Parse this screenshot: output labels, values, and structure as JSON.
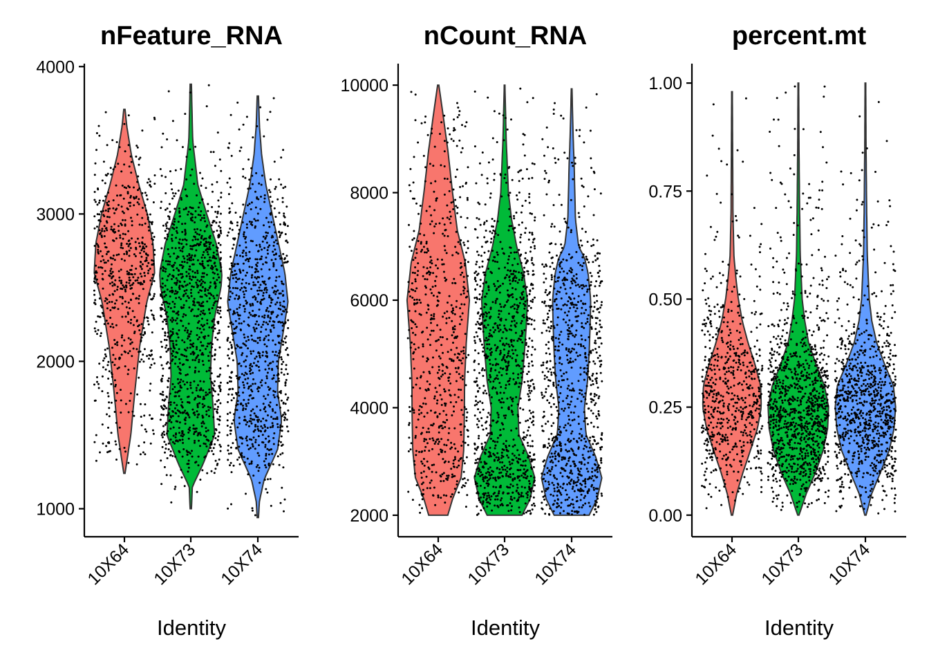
{
  "chart_data": [
    {
      "type": "violin",
      "title": "nFeature_RNA",
      "xlabel": "Identity",
      "ylabel": "",
      "categories": [
        "10X64",
        "10X73",
        "10X74"
      ],
      "colors": [
        "#F8766D",
        "#00BA38",
        "#619CFF"
      ],
      "yticks": [
        1000,
        2000,
        3000,
        4000
      ],
      "ytick_labels": [
        "1000",
        "2000",
        "3000",
        "4000"
      ],
      "ylim": [
        810,
        4020
      ],
      "groups": [
        {
          "name": "10X64",
          "min": 1240,
          "max": 3710,
          "density": [
            [
              1240,
              0.02
            ],
            [
              1500,
              0.2
            ],
            [
              1800,
              0.33
            ],
            [
              2100,
              0.48
            ],
            [
              2400,
              0.7
            ],
            [
              2600,
              0.95
            ],
            [
              2800,
              0.9
            ],
            [
              3000,
              0.72
            ],
            [
              3200,
              0.45
            ],
            [
              3400,
              0.22
            ],
            [
              3600,
              0.07
            ],
            [
              3710,
              0.02
            ]
          ]
        },
        {
          "name": "10X73",
          "min": 1000,
          "max": 3880,
          "density": [
            [
              1000,
              0.02
            ],
            [
              1150,
              0.05
            ],
            [
              1300,
              0.38
            ],
            [
              1500,
              0.75
            ],
            [
              1700,
              0.7
            ],
            [
              1900,
              0.62
            ],
            [
              2100,
              0.65
            ],
            [
              2300,
              0.75
            ],
            [
              2500,
              0.95
            ],
            [
              2600,
              0.98
            ],
            [
              2800,
              0.8
            ],
            [
              3000,
              0.5
            ],
            [
              3200,
              0.22
            ],
            [
              3500,
              0.06
            ],
            [
              3880,
              0.02
            ]
          ]
        },
        {
          "name": "10X74",
          "min": 940,
          "max": 3800,
          "density": [
            [
              940,
              0.02
            ],
            [
              1050,
              0.05
            ],
            [
              1200,
              0.2
            ],
            [
              1400,
              0.62
            ],
            [
              1600,
              0.75
            ],
            [
              1800,
              0.62
            ],
            [
              2000,
              0.65
            ],
            [
              2200,
              0.8
            ],
            [
              2400,
              0.95
            ],
            [
              2600,
              0.85
            ],
            [
              2800,
              0.65
            ],
            [
              3000,
              0.45
            ],
            [
              3200,
              0.25
            ],
            [
              3400,
              0.12
            ],
            [
              3600,
              0.05
            ],
            [
              3800,
              0.02
            ]
          ]
        }
      ]
    },
    {
      "type": "violin",
      "title": "nCount_RNA",
      "xlabel": "Identity",
      "ylabel": "",
      "categories": [
        "10X64",
        "10X73",
        "10X74"
      ],
      "colors": [
        "#F8766D",
        "#00BA38",
        "#619CFF"
      ],
      "yticks": [
        2000,
        4000,
        6000,
        8000,
        10000
      ],
      "ytick_labels": [
        "2000",
        "4000",
        "6000",
        "8000",
        "10000"
      ],
      "ylim": [
        1600,
        10400
      ],
      "groups": [
        {
          "name": "10X64",
          "min": 2000,
          "max": 10000,
          "density": [
            [
              2000,
              0.3
            ],
            [
              2300,
              0.45
            ],
            [
              2700,
              0.72
            ],
            [
              3200,
              0.8
            ],
            [
              3800,
              0.82
            ],
            [
              4500,
              0.83
            ],
            [
              5200,
              0.88
            ],
            [
              6000,
              0.98
            ],
            [
              6700,
              0.85
            ],
            [
              7300,
              0.6
            ],
            [
              8000,
              0.45
            ],
            [
              8800,
              0.3
            ],
            [
              9500,
              0.14
            ],
            [
              10000,
              0.02
            ]
          ]
        },
        {
          "name": "10X73",
          "min": 2000,
          "max": 10000,
          "density": [
            [
              2000,
              0.55
            ],
            [
              2300,
              0.8
            ],
            [
              2700,
              0.95
            ],
            [
              3100,
              0.75
            ],
            [
              3500,
              0.45
            ],
            [
              4000,
              0.42
            ],
            [
              4500,
              0.55
            ],
            [
              5000,
              0.62
            ],
            [
              5500,
              0.68
            ],
            [
              6000,
              0.72
            ],
            [
              6500,
              0.6
            ],
            [
              7000,
              0.38
            ],
            [
              7500,
              0.22
            ],
            [
              8000,
              0.12
            ],
            [
              9000,
              0.05
            ],
            [
              10000,
              0.01
            ]
          ]
        },
        {
          "name": "10X74",
          "min": 2000,
          "max": 9930,
          "density": [
            [
              2000,
              0.55
            ],
            [
              2300,
              0.8
            ],
            [
              2700,
              0.95
            ],
            [
              3100,
              0.75
            ],
            [
              3500,
              0.45
            ],
            [
              4000,
              0.4
            ],
            [
              4500,
              0.5
            ],
            [
              5000,
              0.55
            ],
            [
              5500,
              0.58
            ],
            [
              6000,
              0.6
            ],
            [
              6500,
              0.52
            ],
            [
              6800,
              0.4
            ],
            [
              7000,
              0.22
            ],
            [
              7500,
              0.12
            ],
            [
              8000,
              0.1
            ],
            [
              8500,
              0.08
            ],
            [
              9000,
              0.05
            ],
            [
              9930,
              0.01
            ]
          ]
        }
      ]
    },
    {
      "type": "violin",
      "title": "percent.mt",
      "xlabel": "Identity",
      "ylabel": "",
      "categories": [
        "10X64",
        "10X73",
        "10X74"
      ],
      "colors": [
        "#F8766D",
        "#00BA38",
        "#619CFF"
      ],
      "yticks": [
        0.0,
        0.25,
        0.5,
        0.75,
        1.0
      ],
      "ytick_labels": [
        "0.00",
        "0.25",
        "0.50",
        "0.75",
        "1.00"
      ],
      "ylim": [
        -0.05,
        1.045
      ],
      "groups": [
        {
          "name": "10X64",
          "min": 0.0,
          "max": 0.98,
          "density": [
            [
              0.0,
              0.02
            ],
            [
              0.05,
              0.15
            ],
            [
              0.1,
              0.35
            ],
            [
              0.15,
              0.58
            ],
            [
              0.2,
              0.8
            ],
            [
              0.25,
              0.92
            ],
            [
              0.3,
              0.9
            ],
            [
              0.35,
              0.72
            ],
            [
              0.4,
              0.5
            ],
            [
              0.45,
              0.32
            ],
            [
              0.5,
              0.2
            ],
            [
              0.55,
              0.12
            ],
            [
              0.6,
              0.06
            ],
            [
              0.7,
              0.03
            ],
            [
              0.98,
              0.01
            ]
          ]
        },
        {
          "name": "10X73",
          "min": 0.0,
          "max": 1.0,
          "density": [
            [
              0.0,
              0.02
            ],
            [
              0.05,
              0.25
            ],
            [
              0.1,
              0.55
            ],
            [
              0.15,
              0.78
            ],
            [
              0.2,
              0.92
            ],
            [
              0.25,
              0.95
            ],
            [
              0.3,
              0.82
            ],
            [
              0.35,
              0.55
            ],
            [
              0.4,
              0.32
            ],
            [
              0.45,
              0.2
            ],
            [
              0.5,
              0.12
            ],
            [
              0.6,
              0.06
            ],
            [
              0.7,
              0.04
            ],
            [
              0.85,
              0.02
            ],
            [
              1.0,
              0.01
            ]
          ]
        },
        {
          "name": "10X74",
          "min": 0.0,
          "max": 1.0,
          "density": [
            [
              0.0,
              0.02
            ],
            [
              0.05,
              0.2
            ],
            [
              0.1,
              0.48
            ],
            [
              0.15,
              0.75
            ],
            [
              0.2,
              0.9
            ],
            [
              0.25,
              0.95
            ],
            [
              0.3,
              0.88
            ],
            [
              0.35,
              0.6
            ],
            [
              0.4,
              0.35
            ],
            [
              0.45,
              0.2
            ],
            [
              0.5,
              0.12
            ],
            [
              0.6,
              0.06
            ],
            [
              0.7,
              0.04
            ],
            [
              0.85,
              0.02
            ],
            [
              1.0,
              0.01
            ]
          ]
        }
      ]
    }
  ]
}
